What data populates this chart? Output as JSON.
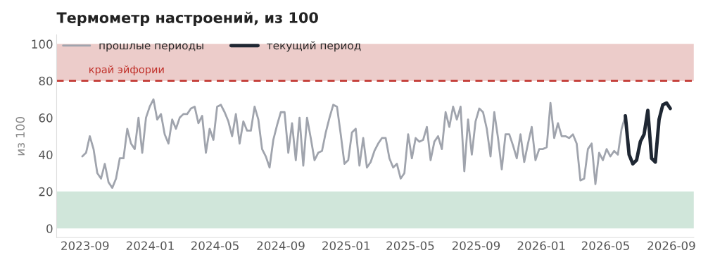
{
  "chart_data": {
    "type": "line",
    "title": "Термометр настроений, из 100",
    "ylabel": "из 100",
    "xlim": [
      "2023-07-10",
      "2026-10-13"
    ],
    "ylim": [
      -5,
      105
    ],
    "xticks": [
      "2023-09",
      "2024-01",
      "2024-05",
      "2024-09",
      "2025-01",
      "2025-05",
      "2025-09",
      "2026-01",
      "2026-05",
      "2026-09"
    ],
    "yticks": [
      0,
      20,
      40,
      60,
      80,
      100
    ],
    "grid": false,
    "legend": "top left",
    "marker": "none",
    "line_style": "solid",
    "bands": [
      {
        "axis": "y",
        "from": 80,
        "to": 100,
        "color": "#ecccca"
      },
      {
        "axis": "y",
        "from": 0,
        "to": 20,
        "color": "#d0e6da"
      }
    ],
    "ref_lines": [
      {
        "axis": "y",
        "value": 80,
        "label": "край эйфории",
        "color": "#c0302a",
        "line_style": "dashed"
      }
    ],
    "series": [
      {
        "name": "прошлые периоды",
        "color": "#a0a4ad",
        "x": [
          "2023-08-27",
          "2023-09-03",
          "2023-09-10",
          "2023-09-17",
          "2023-09-24",
          "2023-10-01",
          "2023-10-08",
          "2023-10-15",
          "2023-10-22",
          "2023-10-29",
          "2023-11-05",
          "2023-11-12",
          "2023-11-19",
          "2023-11-26",
          "2023-12-03",
          "2023-12-10",
          "2023-12-17",
          "2023-12-24",
          "2023-12-31",
          "2024-01-07",
          "2024-01-14",
          "2024-01-21",
          "2024-01-28",
          "2024-02-04",
          "2024-02-11",
          "2024-02-18",
          "2024-02-25",
          "2024-03-03",
          "2024-03-10",
          "2024-03-17",
          "2024-03-24",
          "2024-03-31",
          "2024-04-07",
          "2024-04-14",
          "2024-04-21",
          "2024-04-28",
          "2024-05-05",
          "2024-05-12",
          "2024-05-19",
          "2024-05-26",
          "2024-06-02",
          "2024-06-09",
          "2024-06-16",
          "2024-06-23",
          "2024-06-30",
          "2024-07-07",
          "2024-07-14",
          "2024-07-21",
          "2024-07-28",
          "2024-08-04",
          "2024-08-11",
          "2024-08-18",
          "2024-08-25",
          "2024-09-01",
          "2024-09-08",
          "2024-09-15",
          "2024-09-22",
          "2024-09-29",
          "2024-10-06",
          "2024-10-13",
          "2024-10-20",
          "2024-10-27",
          "2024-11-03",
          "2024-11-10",
          "2024-11-17",
          "2024-11-24",
          "2024-12-01",
          "2024-12-08",
          "2024-12-15",
          "2024-12-22",
          "2024-12-29",
          "2025-01-05",
          "2025-01-12",
          "2025-01-19",
          "2025-01-26",
          "2025-02-02",
          "2025-02-09",
          "2025-02-16",
          "2025-02-23",
          "2025-03-02",
          "2025-03-09",
          "2025-03-16",
          "2025-03-23",
          "2025-03-30",
          "2025-04-06",
          "2025-04-13",
          "2025-04-20",
          "2025-04-27",
          "2025-05-04",
          "2025-05-11",
          "2025-05-18",
          "2025-05-25",
          "2025-06-01",
          "2025-06-08",
          "2025-06-15",
          "2025-06-22",
          "2025-06-29",
          "2025-07-06",
          "2025-07-13",
          "2025-07-20",
          "2025-07-27",
          "2025-08-03",
          "2025-08-10",
          "2025-08-17",
          "2025-08-24",
          "2025-08-31",
          "2025-09-07",
          "2025-09-14",
          "2025-09-21",
          "2025-09-28",
          "2025-10-05",
          "2025-10-12",
          "2025-10-19",
          "2025-10-26",
          "2025-11-02",
          "2025-11-09",
          "2025-11-16",
          "2025-11-23",
          "2025-11-30",
          "2025-12-07",
          "2025-12-14",
          "2025-12-21",
          "2025-12-28",
          "2026-01-04",
          "2026-01-11",
          "2026-01-18",
          "2026-01-25",
          "2026-02-01",
          "2026-02-08",
          "2026-02-15",
          "2026-02-22",
          "2026-03-01",
          "2026-03-08",
          "2026-03-15",
          "2026-03-22",
          "2026-03-29",
          "2026-04-05",
          "2026-04-12",
          "2026-04-19",
          "2026-04-26",
          "2026-05-03",
          "2026-05-10",
          "2026-05-17",
          "2026-05-24",
          "2026-05-31",
          "2026-06-07"
        ],
        "values": [
          39,
          41,
          50,
          43,
          30,
          27,
          35,
          25,
          22,
          27,
          38,
          38,
          54,
          46,
          43,
          60,
          41,
          60,
          66,
          70,
          59,
          62,
          51,
          46,
          59,
          54,
          60,
          62,
          62,
          65,
          66,
          57,
          61,
          41,
          54,
          48,
          66,
          67,
          63,
          58,
          50,
          62,
          46,
          58,
          53,
          53,
          66,
          59,
          43,
          39,
          33,
          48,
          56,
          63,
          63,
          41,
          57,
          37,
          60,
          34,
          60,
          49,
          37,
          41,
          42,
          52,
          60,
          67,
          66,
          51,
          35,
          37,
          52,
          54,
          34,
          49,
          33,
          36,
          42,
          46,
          49,
          49,
          38,
          33,
          35,
          27,
          30,
          51,
          38,
          49,
          47,
          48,
          55,
          37,
          47,
          50,
          43,
          63,
          55,
          66,
          59,
          66,
          31,
          59,
          40,
          58,
          65,
          63,
          54,
          39,
          63,
          49,
          32,
          51,
          51,
          45,
          38,
          51,
          36,
          46,
          55,
          37,
          43,
          43,
          44,
          68,
          49,
          57,
          50,
          50,
          49,
          51,
          46,
          26,
          27,
          43,
          46,
          24,
          41,
          37,
          43,
          39,
          42,
          40,
          54,
          61
        ]
      },
      {
        "name": "текущий период",
        "color": "#1f2733",
        "x": [
          "2026-06-07",
          "2026-06-14",
          "2026-06-21",
          "2026-06-28",
          "2026-07-05",
          "2026-07-12",
          "2026-07-19",
          "2026-07-26",
          "2026-08-02",
          "2026-08-09",
          "2026-08-16",
          "2026-08-23",
          "2026-08-30"
        ],
        "values": [
          61,
          40,
          35,
          37,
          47,
          51,
          64,
          38,
          36,
          59,
          67,
          68,
          65
        ]
      }
    ]
  }
}
